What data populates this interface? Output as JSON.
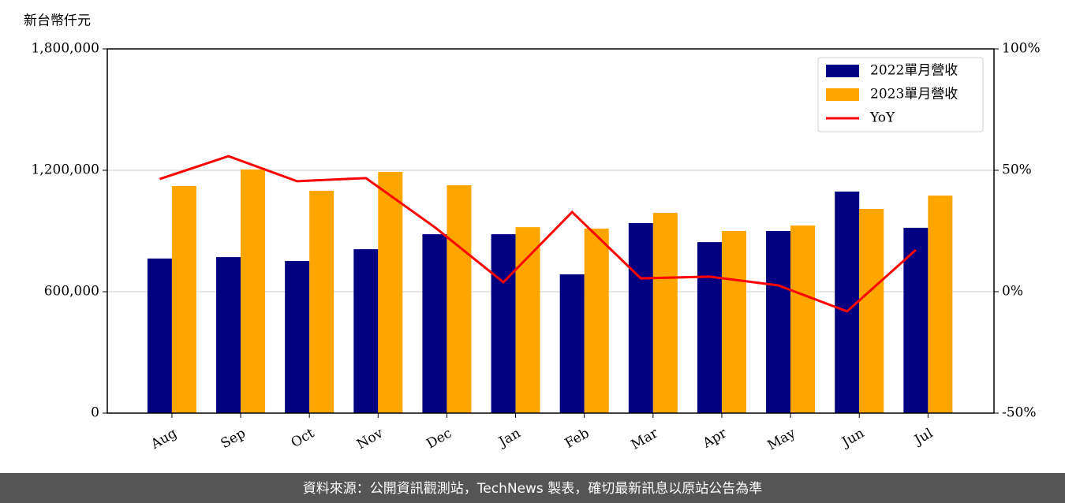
{
  "chart_data": {
    "type": "bar",
    "y_axis_label": "新台幣仟元",
    "categories": [
      "Aug",
      "Sep",
      "Oct",
      "Nov",
      "Dec",
      "Jan",
      "Feb",
      "Mar",
      "Apr",
      "May",
      "Jun",
      "Jul"
    ],
    "series": [
      {
        "name": "2022單月營收",
        "color": "#000080",
        "values": [
          764000,
          771000,
          752000,
          810000,
          884000,
          884000,
          686000,
          939000,
          845000,
          900000,
          1095000,
          916000
        ]
      },
      {
        "name": "2023單月營收",
        "color": "#ffa500",
        "values": [
          1122000,
          1204000,
          1099000,
          1192000,
          1126000,
          919000,
          912000,
          990000,
          900000,
          927000,
          1009000,
          1075000
        ]
      },
      {
        "name": "YoY",
        "type": "line",
        "axis": "y2",
        "color": "#ff0000",
        "values": [
          46.4,
          55.8,
          45.5,
          46.8,
          26.6,
          3.9,
          32.8,
          5.5,
          6.2,
          2.6,
          -8.1,
          17.2
        ]
      }
    ],
    "ylim": [
      0,
      1800000
    ],
    "yticks": [
      0,
      {
        "value": 600000,
        "label": "600,000"
      },
      {
        "value": 1200000,
        "label": "1,200,000"
      },
      {
        "value": 1800000,
        "label": "1,800,000"
      }
    ],
    "y2lim": [
      -50,
      100
    ],
    "y2ticks": [
      {
        "value": -50,
        "label": "-50%"
      },
      {
        "value": 0,
        "label": "0%"
      },
      {
        "value": 50,
        "label": "50%"
      },
      {
        "value": 100,
        "label": "100%"
      }
    ],
    "grid": true,
    "legend": "upper right",
    "footer": "資料來源：公開資訊觀測站，TechNews 製表，確切最新訊息以原站公告為準"
  }
}
